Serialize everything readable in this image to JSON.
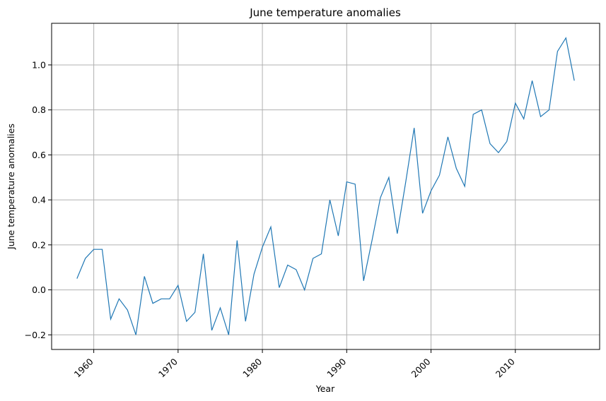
{
  "chart_data": {
    "type": "line",
    "title": "June temperature anomalies",
    "xlabel": "Year",
    "ylabel": "June temperature anomalies",
    "xlim": [
      1955,
      2020
    ],
    "ylim": [
      -0.265,
      1.185
    ],
    "xticks": [
      1960,
      1970,
      1980,
      1990,
      2000,
      2010
    ],
    "yticks": [
      -0.2,
      0.0,
      0.2,
      0.4,
      0.6,
      0.8,
      1.0
    ],
    "ytick_labels": [
      "−0.2",
      "0.0",
      "0.2",
      "0.4",
      "0.6",
      "0.8",
      "1.0"
    ],
    "grid": true,
    "color": "#1f77b4",
    "x": [
      1958,
      1959,
      1960,
      1961,
      1962,
      1963,
      1964,
      1965,
      1966,
      1967,
      1968,
      1969,
      1970,
      1971,
      1972,
      1973,
      1974,
      1975,
      1976,
      1977,
      1978,
      1979,
      1980,
      1981,
      1982,
      1983,
      1984,
      1985,
      1986,
      1987,
      1988,
      1989,
      1990,
      1991,
      1992,
      1993,
      1994,
      1995,
      1996,
      1997,
      1998,
      1999,
      2000,
      2001,
      2002,
      2003,
      2004,
      2005,
      2006,
      2007,
      2008,
      2009,
      2010,
      2011,
      2012,
      2013,
      2014,
      2015,
      2016,
      2017
    ],
    "y": [
      0.05,
      0.14,
      0.18,
      0.18,
      -0.13,
      -0.04,
      -0.09,
      -0.2,
      0.06,
      -0.06,
      -0.04,
      -0.04,
      0.02,
      -0.14,
      -0.1,
      0.16,
      -0.18,
      -0.08,
      -0.2,
      0.22,
      -0.14,
      0.07,
      0.19,
      0.28,
      0.01,
      0.11,
      0.09,
      0.0,
      0.14,
      0.16,
      0.4,
      0.24,
      0.48,
      0.47,
      0.04,
      0.22,
      0.41,
      0.5,
      0.25,
      0.48,
      0.72,
      0.34,
      0.44,
      0.51,
      0.68,
      0.54,
      0.46,
      0.78,
      0.8,
      0.65,
      0.61,
      0.66,
      0.83,
      0.76,
      0.93,
      0.77,
      0.8,
      1.06,
      1.12,
      0.93
    ]
  }
}
